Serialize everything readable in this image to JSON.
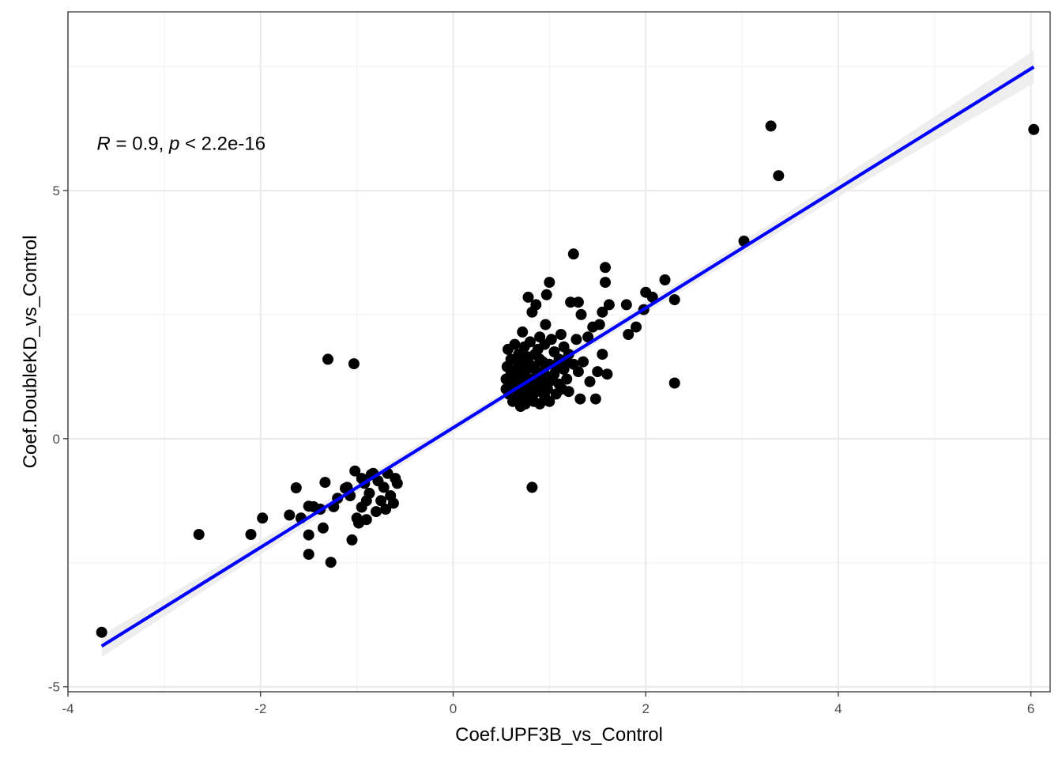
{
  "chart_data": {
    "type": "scatter",
    "xlabel": "Coef.UPF3B_vs_Control",
    "ylabel": "Coef.DoubleKD_vs_Control",
    "xlim": [
      -4.0,
      6.2
    ],
    "ylim": [
      -5.1,
      8.6
    ],
    "x_ticks": [
      -4,
      -2,
      0,
      2,
      4,
      6
    ],
    "y_ticks": [
      -5,
      0,
      5
    ],
    "x_tick_labels": [
      "-4",
      "-2",
      "0",
      "2",
      "4",
      "6"
    ],
    "y_tick_labels": [
      "-5",
      "0",
      "5"
    ],
    "grid": true,
    "annotation": {
      "r_symbol": "R",
      "r_text": " = 0.9, ",
      "p_symbol": "p",
      "p_text": " < 2.2e-16",
      "x": -3.7,
      "y": 5.95
    },
    "fit_line": {
      "color": "#0000ff",
      "x": [
        -3.65,
        6.03
      ],
      "y": [
        -4.18,
        7.49
      ],
      "ci_band_color": "#ebebeb",
      "ci_halfwidth": [
        0.22,
        0.09,
        0.33
      ]
    },
    "point_color": "#000000",
    "points": [
      [
        -3.65,
        -3.9
      ],
      [
        -2.64,
        -1.93
      ],
      [
        -2.1,
        -1.93
      ],
      [
        -1.98,
        -1.6
      ],
      [
        -1.7,
        -1.54
      ],
      [
        -1.63,
        -0.99
      ],
      [
        -1.58,
        -1.6
      ],
      [
        -1.5,
        -1.36
      ],
      [
        -1.5,
        -1.94
      ],
      [
        -1.5,
        -2.33
      ],
      [
        -1.45,
        -1.37
      ],
      [
        -1.38,
        -1.42
      ],
      [
        -1.35,
        -1.8
      ],
      [
        -1.33,
        -0.88
      ],
      [
        -1.27,
        -2.49
      ],
      [
        -1.24,
        -1.37
      ],
      [
        -1.2,
        -1.2
      ],
      [
        -1.1,
        -0.98
      ],
      [
        -1.07,
        -1.15
      ],
      [
        -1.05,
        -2.04
      ],
      [
        -1.02,
        -0.65
      ],
      [
        -1.0,
        -1.6
      ],
      [
        -0.98,
        -1.7
      ],
      [
        -0.95,
        -1.38
      ],
      [
        -0.92,
        -0.9
      ],
      [
        -0.9,
        -1.63
      ],
      [
        -0.87,
        -1.1
      ],
      [
        -0.85,
        -0.72
      ],
      [
        -0.83,
        -0.7
      ],
      [
        -0.8,
        -1.47
      ],
      [
        -0.78,
        -0.85
      ],
      [
        -0.75,
        -1.25
      ],
      [
        -0.72,
        -0.98
      ],
      [
        -0.7,
        -1.42
      ],
      [
        -0.68,
        -0.7
      ],
      [
        -0.65,
        -1.15
      ],
      [
        -0.62,
        -1.3
      ],
      [
        -0.6,
        -0.8
      ],
      [
        -0.58,
        -0.9
      ],
      [
        -0.9,
        -1.25
      ],
      [
        -0.95,
        -0.8
      ],
      [
        -1.12,
        -1.0
      ],
      [
        -1.3,
        1.6
      ],
      [
        -1.03,
        1.51
      ],
      [
        0.55,
        1.0
      ],
      [
        0.55,
        1.2
      ],
      [
        0.56,
        1.45
      ],
      [
        0.57,
        1.8
      ],
      [
        0.58,
        0.9
      ],
      [
        0.6,
        1.3
      ],
      [
        0.6,
        1.6
      ],
      [
        0.62,
        0.75
      ],
      [
        0.62,
        1.1
      ],
      [
        0.64,
        1.9
      ],
      [
        0.65,
        1.0
      ],
      [
        0.65,
        1.4
      ],
      [
        0.66,
        0.8
      ],
      [
        0.68,
        1.25
      ],
      [
        0.68,
        1.7
      ],
      [
        0.7,
        0.65
      ],
      [
        0.7,
        0.95
      ],
      [
        0.7,
        1.5
      ],
      [
        0.72,
        1.15
      ],
      [
        0.72,
        2.15
      ],
      [
        0.74,
        1.85
      ],
      [
        0.75,
        0.7
      ],
      [
        0.75,
        1.35
      ],
      [
        0.76,
        1.0
      ],
      [
        0.78,
        1.55
      ],
      [
        0.78,
        2.85
      ],
      [
        0.8,
        0.85
      ],
      [
        0.8,
        1.2
      ],
      [
        0.8,
        1.95
      ],
      [
        0.82,
        2.55
      ],
      [
        0.82,
        1.1
      ],
      [
        0.84,
        0.75
      ],
      [
        0.85,
        1.4
      ],
      [
        0.85,
        1.7
      ],
      [
        0.86,
        2.7
      ],
      [
        0.87,
        0.95
      ],
      [
        0.88,
        1.25
      ],
      [
        0.9,
        0.7
      ],
      [
        0.9,
        1.6
      ],
      [
        0.9,
        2.05
      ],
      [
        0.92,
        1.05
      ],
      [
        0.94,
        1.35
      ],
      [
        0.95,
        0.85
      ],
      [
        0.95,
        1.9
      ],
      [
        0.96,
        2.3
      ],
      [
        0.97,
        2.9
      ],
      [
        1.0,
        1.15
      ],
      [
        1.0,
        1.5
      ],
      [
        1.0,
        0.75
      ],
      [
        1.0,
        3.15
      ],
      [
        1.02,
        2.0
      ],
      [
        1.05,
        1.3
      ],
      [
        1.05,
        1.75
      ],
      [
        1.07,
        0.9
      ],
      [
        1.1,
        1.6
      ],
      [
        1.1,
        1.1
      ],
      [
        1.12,
        2.1
      ],
      [
        1.15,
        1.4
      ],
      [
        1.15,
        1.85
      ],
      [
        1.18,
        1.2
      ],
      [
        1.2,
        0.95
      ],
      [
        1.2,
        1.7
      ],
      [
        1.22,
        2.75
      ],
      [
        1.25,
        3.72
      ],
      [
        1.25,
        1.5
      ],
      [
        1.28,
        2.0
      ],
      [
        1.3,
        2.75
      ],
      [
        1.3,
        1.35
      ],
      [
        1.32,
        0.8
      ],
      [
        1.33,
        2.5
      ],
      [
        1.35,
        1.55
      ],
      [
        1.4,
        2.05
      ],
      [
        1.42,
        1.15
      ],
      [
        1.45,
        2.25
      ],
      [
        1.48,
        0.8
      ],
      [
        1.5,
        1.35
      ],
      [
        1.52,
        2.3
      ],
      [
        1.55,
        2.55
      ],
      [
        1.55,
        1.7
      ],
      [
        1.58,
        3.45
      ],
      [
        1.58,
        3.15
      ],
      [
        1.6,
        1.3
      ],
      [
        1.62,
        2.7
      ],
      [
        1.8,
        2.7
      ],
      [
        1.82,
        2.1
      ],
      [
        1.9,
        2.25
      ],
      [
        1.98,
        2.6
      ],
      [
        2.0,
        2.95
      ],
      [
        2.07,
        2.85
      ],
      [
        2.2,
        3.2
      ],
      [
        2.3,
        2.8
      ],
      [
        2.3,
        1.12
      ],
      [
        0.82,
        -0.98
      ],
      [
        3.02,
        3.98
      ],
      [
        3.3,
        6.3
      ],
      [
        3.38,
        5.3
      ],
      [
        6.03,
        6.23
      ],
      [
        0.68,
        1.55
      ],
      [
        0.73,
        0.85
      ],
      [
        0.77,
        1.65
      ],
      [
        0.83,
        1.45
      ],
      [
        0.88,
        1.8
      ],
      [
        0.92,
        1.2
      ],
      [
        0.98,
        1.0
      ],
      [
        1.08,
        1.45
      ],
      [
        1.13,
        1.0
      ],
      [
        1.17,
        1.55
      ],
      [
        0.6,
        1.05
      ],
      [
        0.63,
        1.3
      ],
      [
        0.66,
        1.6
      ],
      [
        0.71,
        1.4
      ],
      [
        0.79,
        1.05
      ],
      [
        0.86,
        1.15
      ],
      [
        0.93,
        1.55
      ],
      [
        1.03,
        1.25
      ]
    ]
  }
}
